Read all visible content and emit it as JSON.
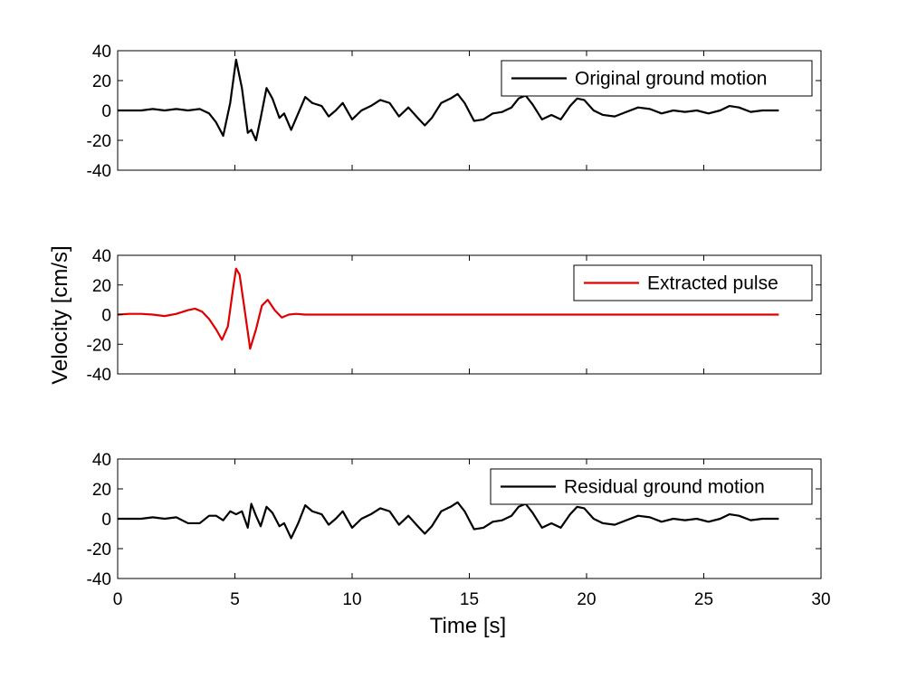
{
  "chart_data": {
    "type": "line",
    "xlabel": "Time [s]",
    "ylabel": "Velocity [cm/s]",
    "xlim": [
      0,
      30
    ],
    "xticks": [
      "0",
      "5",
      "10",
      "15",
      "20",
      "25",
      "30"
    ],
    "ylim": [
      -40,
      40
    ],
    "yticks": [
      "40",
      "20",
      "0",
      "-20",
      "-40"
    ],
    "grid": false,
    "panels": [
      {
        "legend": "Original ground motion",
        "legend_position": "top-right",
        "color": "#000000",
        "x": [
          0,
          0.5,
          1,
          1.5,
          2,
          2.5,
          3,
          3.5,
          3.9,
          4.2,
          4.5,
          4.8,
          5.05,
          5.3,
          5.55,
          5.7,
          5.9,
          6.1,
          6.35,
          6.6,
          6.9,
          7.1,
          7.4,
          7.7,
          8,
          8.3,
          8.7,
          9,
          9.3,
          9.6,
          10,
          10.4,
          10.8,
          11.2,
          11.6,
          12,
          12.4,
          12.8,
          13.1,
          13.4,
          13.8,
          14.2,
          14.5,
          14.8,
          15.2,
          15.6,
          16,
          16.4,
          16.8,
          17.1,
          17.4,
          17.7,
          18.1,
          18.5,
          18.9,
          19.3,
          19.6,
          19.9,
          20.3,
          20.7,
          21.2,
          21.7,
          22.2,
          22.7,
          23.2,
          23.7,
          24.2,
          24.7,
          25.2,
          25.7,
          26.1,
          26.5,
          27,
          27.5,
          28,
          28.2
        ],
        "y": [
          0,
          0,
          0,
          1,
          0,
          1,
          0,
          1,
          -2,
          -8,
          -17,
          5,
          34,
          15,
          -15,
          -13,
          -20,
          -5,
          15,
          8,
          -5,
          -2,
          -13,
          -2,
          9,
          5,
          3,
          -4,
          0,
          5,
          -6,
          0,
          3,
          7,
          5,
          -4,
          2,
          -5,
          -10,
          -5,
          5,
          8,
          11,
          5,
          -7,
          -6,
          -2,
          -1,
          2,
          8,
          10,
          4,
          -6,
          -3,
          -6,
          3,
          8,
          7,
          0,
          -3,
          -4,
          -1,
          2,
          1,
          -2,
          0,
          -1,
          0,
          -2,
          0,
          3,
          2,
          -1,
          0,
          0,
          0
        ]
      },
      {
        "legend": "Extracted pulse",
        "legend_position": "top-right",
        "color": "#e00000",
        "x": [
          0,
          0.5,
          1,
          1.5,
          2,
          2.5,
          3,
          3.3,
          3.6,
          3.9,
          4.2,
          4.45,
          4.7,
          4.9,
          5.05,
          5.2,
          5.4,
          5.65,
          5.9,
          6.15,
          6.4,
          6.7,
          7,
          7.3,
          7.6,
          8,
          9,
          10,
          15,
          20,
          25,
          28.2
        ],
        "y": [
          0,
          0.5,
          0.5,
          0,
          -1,
          0.5,
          3,
          4,
          2,
          -3,
          -10,
          -17,
          -8,
          15,
          31,
          27,
          5,
          -23,
          -10,
          6,
          10,
          3,
          -2,
          0,
          0.5,
          0,
          0,
          0,
          0,
          0,
          0,
          0
        ]
      },
      {
        "legend": "Residual ground motion",
        "legend_position": "top-right",
        "color": "#000000",
        "x": [
          0,
          0.5,
          1,
          1.5,
          2,
          2.5,
          3,
          3.5,
          3.9,
          4.2,
          4.5,
          4.8,
          5.05,
          5.3,
          5.55,
          5.7,
          5.9,
          6.1,
          6.35,
          6.6,
          6.9,
          7.1,
          7.4,
          7.7,
          8,
          8.3,
          8.7,
          9,
          9.3,
          9.6,
          10,
          10.4,
          10.8,
          11.2,
          11.6,
          12,
          12.4,
          12.8,
          13.1,
          13.4,
          13.8,
          14.2,
          14.5,
          14.8,
          15.2,
          15.6,
          16,
          16.4,
          16.8,
          17.1,
          17.4,
          17.7,
          18.1,
          18.5,
          18.9,
          19.3,
          19.6,
          19.9,
          20.3,
          20.7,
          21.2,
          21.7,
          22.2,
          22.7,
          23.2,
          23.7,
          24.2,
          24.7,
          25.2,
          25.7,
          26.1,
          26.5,
          27,
          27.5,
          28,
          28.2
        ],
        "y": [
          0,
          0,
          0,
          1,
          0,
          1,
          -3,
          -3,
          2,
          2,
          -1,
          5,
          3,
          5,
          -6,
          10,
          2,
          -5,
          8,
          4,
          -5,
          -3,
          -13,
          -3,
          9,
          5,
          3,
          -4,
          0,
          5,
          -6,
          0,
          3,
          7,
          5,
          -4,
          2,
          -5,
          -10,
          -5,
          5,
          8,
          11,
          5,
          -7,
          -6,
          -2,
          -1,
          2,
          8,
          10,
          4,
          -6,
          -3,
          -6,
          3,
          8,
          7,
          0,
          -3,
          -4,
          -1,
          2,
          1,
          -2,
          0,
          -1,
          0,
          -2,
          0,
          3,
          2,
          -1,
          0,
          0,
          0
        ]
      }
    ]
  }
}
